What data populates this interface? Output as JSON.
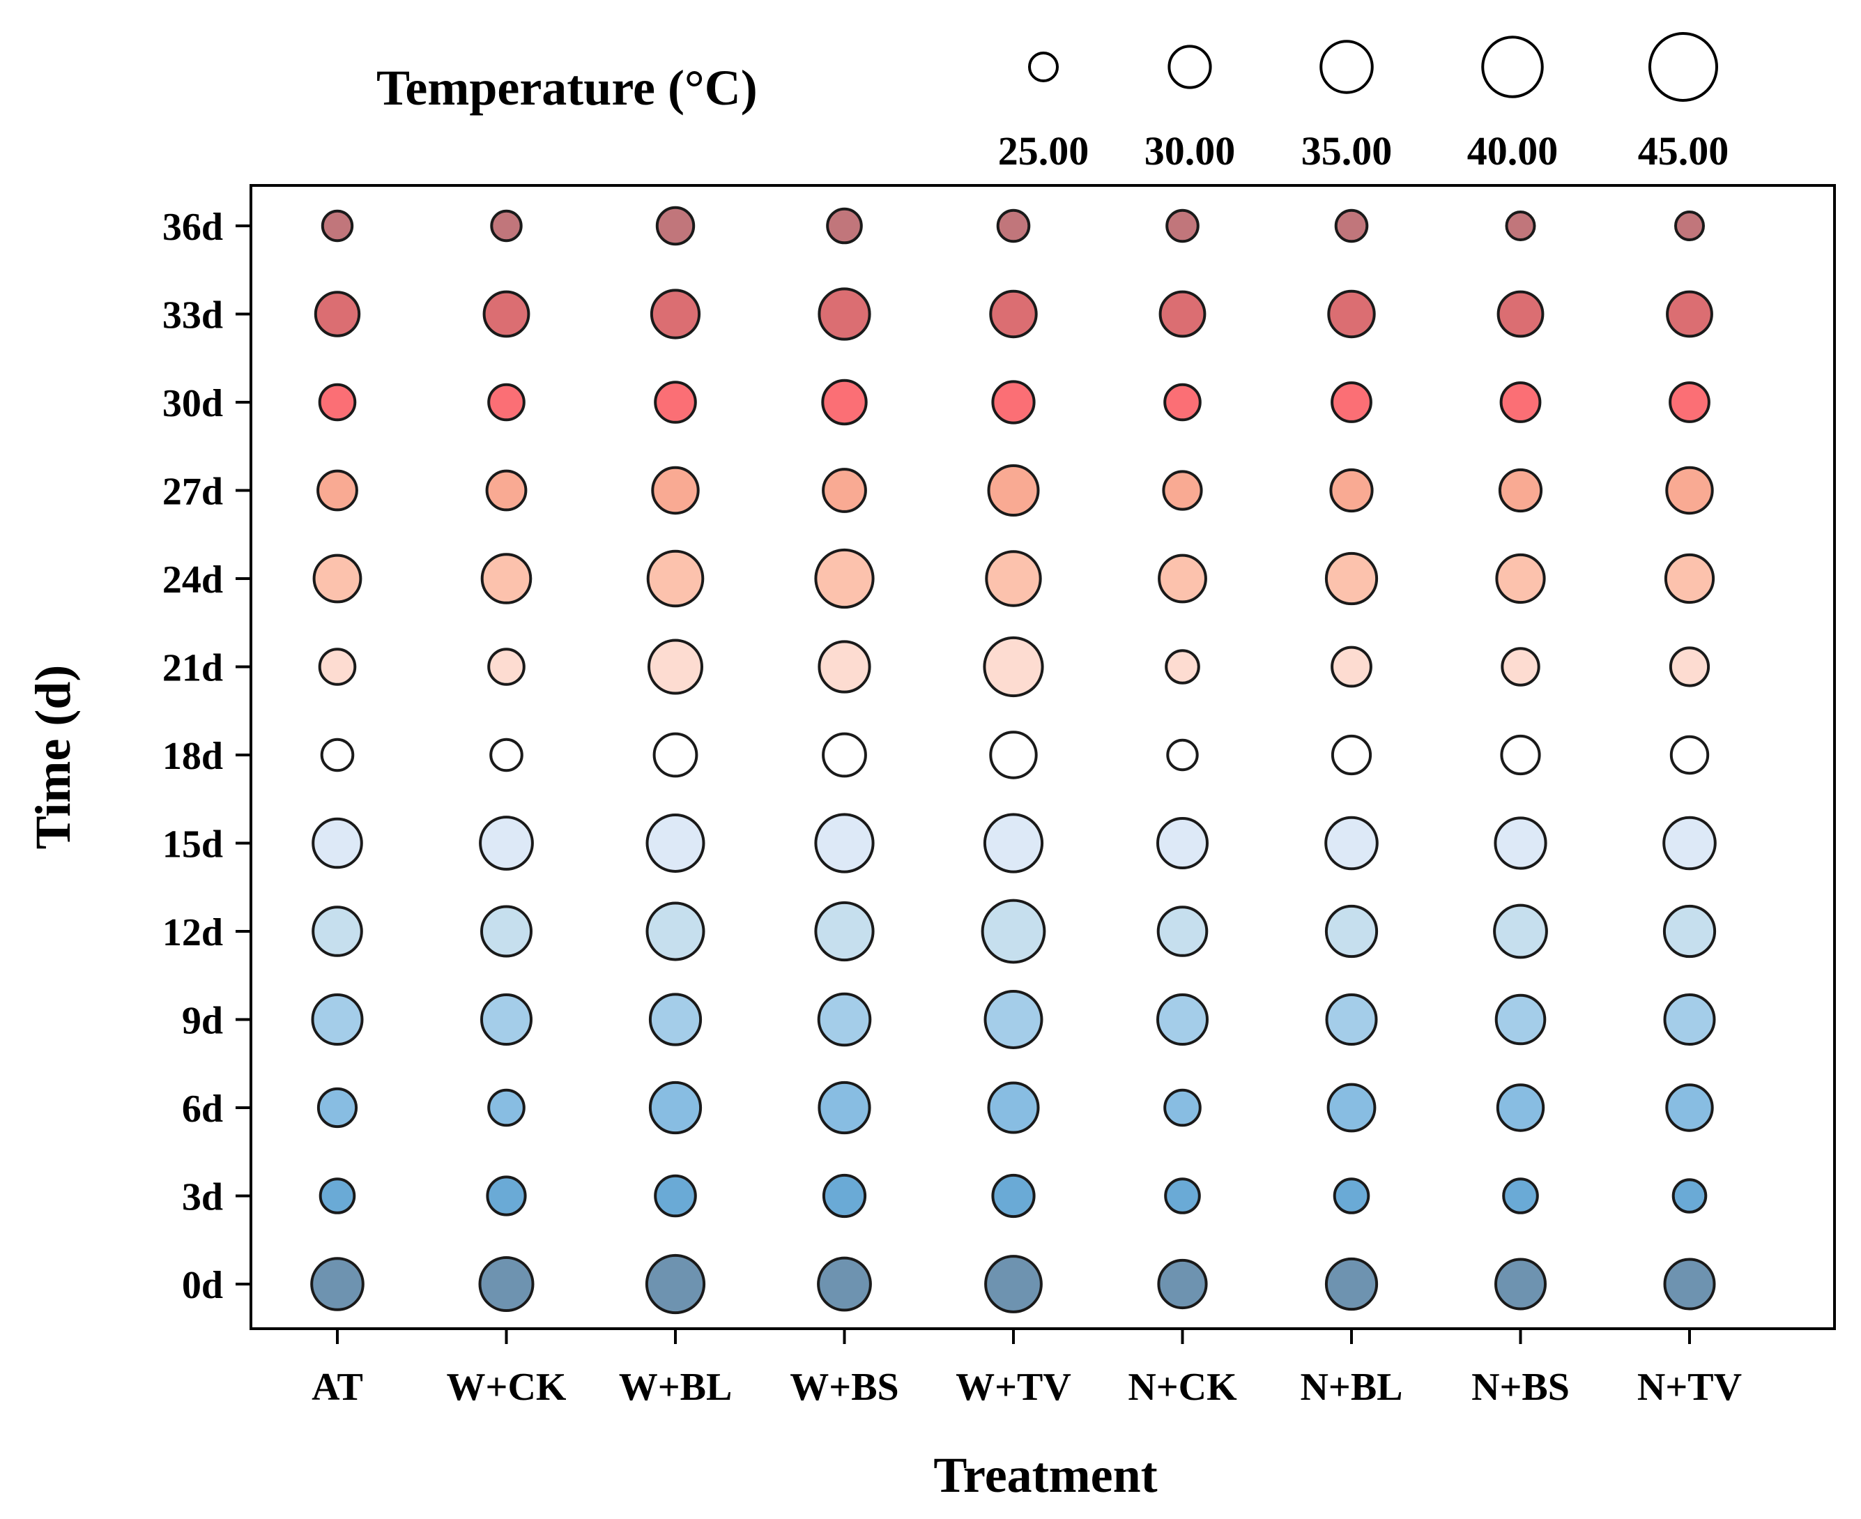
{
  "chart_data": {
    "type": "bubble-heatmap",
    "xlabel": "Treatment",
    "ylabel": "Time (d)",
    "legend_title": "Temperature (°C)",
    "legend_position": "top",
    "legend_entries": [
      {
        "value": 25,
        "label": "25.00"
      },
      {
        "value": 30,
        "label": "30.00"
      },
      {
        "value": 35,
        "label": "35.00"
      },
      {
        "value": 40,
        "label": "40.00"
      },
      {
        "value": 45,
        "label": "45.00"
      }
    ],
    "size_range": [
      20,
      48
    ],
    "categories": [
      "AT",
      "W+CK",
      "W+BL",
      "W+BS",
      "W+TV",
      "N+CK",
      "N+BL",
      "N+BS",
      "N+TV"
    ],
    "times": [
      "0d",
      "3d",
      "6d",
      "9d",
      "12d",
      "15d",
      "18d",
      "21d",
      "24d",
      "27d",
      "30d",
      "33d",
      "36d"
    ],
    "row_colors": {
      "0d": "#6e93b0",
      "3d": "#6aaad6",
      "6d": "#88bde2",
      "9d": "#a4cde9",
      "12d": "#c6dfee",
      "15d": "#dde9f7",
      "18d": "#ffffff",
      "21d": "#fddcd1",
      "24d": "#fcc2ad",
      "27d": "#f9aa93",
      "30d": "#fb6f75",
      "33d": "#db6e72",
      "36d": "#c1767b"
    },
    "temperatures": {
      "0d": [
        35.0,
        36.0,
        38.5,
        35.5,
        37.5,
        33.0,
        34.5,
        34.0,
        34.0
      ],
      "3d": [
        27.0,
        28.5,
        29.5,
        30.0,
        30.0,
        27.0,
        27.0,
        27.0,
        26.5
      ],
      "6d": [
        28.5,
        27.5,
        34.5,
        34.5,
        34.0,
        27.5,
        32.5,
        32.0,
        32.0
      ],
      "9d": [
        34.0,
        34.0,
        34.5,
        35.0,
        38.0,
        34.0,
        34.0,
        33.5,
        34.0
      ],
      "12d": [
        33.5,
        34.0,
        38.0,
        38.5,
        41.5,
        33.5,
        34.5,
        35.5,
        34.5
      ],
      "15d": [
        33.5,
        35.5,
        38.0,
        38.5,
        38.5,
        34.0,
        35.0,
        34.5,
        35.0
      ],
      "18d": [
        26.0,
        26.0,
        30.5,
        30.5,
        32.0,
        25.5,
        28.5,
        28.5,
        28.0
      ],
      "21d": [
        27.5,
        27.5,
        36.0,
        34.5,
        39.0,
        26.5,
        29.0,
        28.0,
        28.5
      ],
      "24d": [
        32.5,
        33.5,
        37.0,
        38.5,
        36.5,
        32.5,
        34.5,
        33.0,
        33.0
      ],
      "27d": [
        29.0,
        29.0,
        32.0,
        30.5,
        34.0,
        28.5,
        30.0,
        30.0,
        32.0
      ],
      "30d": [
        27.5,
        27.5,
        29.5,
        31.0,
        30.0,
        27.5,
        29.0,
        29.0,
        29.0
      ],
      "33d": [
        31.0,
        31.5,
        33.0,
        34.5,
        32.0,
        31.5,
        32.0,
        31.5,
        31.5
      ],
      "36d": [
        25.5,
        25.5,
        28.0,
        27.0,
        26.0,
        26.0,
        26.0,
        24.5,
        25.0
      ]
    }
  }
}
